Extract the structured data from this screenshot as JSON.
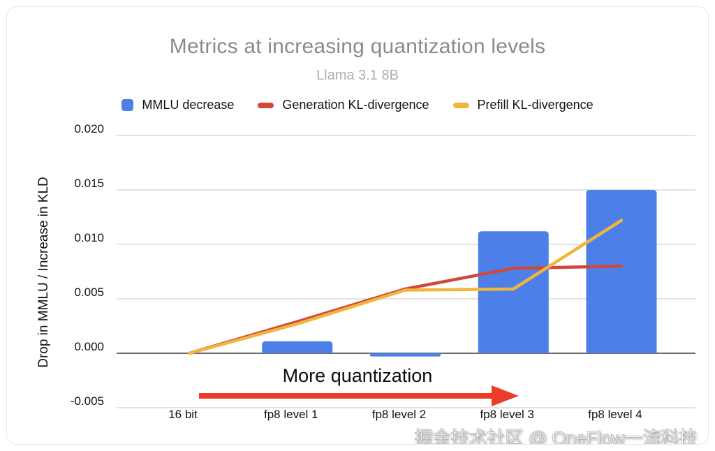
{
  "chart_data": {
    "type": "bar",
    "title": "Metrics at increasing quantization levels",
    "subtitle": "Llama 3.1 8B",
    "categories": [
      "16 bit",
      "fp8 level 1",
      "fp8 level 2",
      "fp8 level 3",
      "fp8 level 4"
    ],
    "series": [
      {
        "name": "MMLU decrease",
        "type": "bar",
        "color": "#4C80E8",
        "values": [
          0,
          0.0011,
          -0.0003,
          0.0112,
          0.015
        ]
      },
      {
        "name": "Generation KL-divergence",
        "type": "line",
        "color": "#D2473A",
        "values": [
          0,
          0.0029,
          0.0059,
          0.0078,
          0.008
        ]
      },
      {
        "name": "Prefill KL-divergence",
        "type": "line",
        "color": "#F1B53D",
        "values": [
          0,
          0.0027,
          0.0058,
          0.0059,
          0.0122
        ]
      }
    ],
    "xlabel": "",
    "ylabel": "Drop in MMLU  / Increase in KLD",
    "yticks": [
      0.02,
      0.015,
      0.01,
      0.005,
      0.0,
      -0.005
    ],
    "ylim": [
      -0.005,
      0.02
    ],
    "grid": true,
    "legend_position": "top"
  },
  "annotation": {
    "text": "More quantization",
    "arrow_color": "#EC3B29"
  },
  "watermark": {
    "text": "掘金技术社区 @ OneFlow一流科技"
  },
  "colors": {
    "title": "#8B8B8B",
    "subtitle": "#AEAEAE",
    "gridline": "#E2E2E2",
    "zero_axis": "#6B6B6B",
    "text": "#111111",
    "card_border": "#E7E7E7"
  }
}
